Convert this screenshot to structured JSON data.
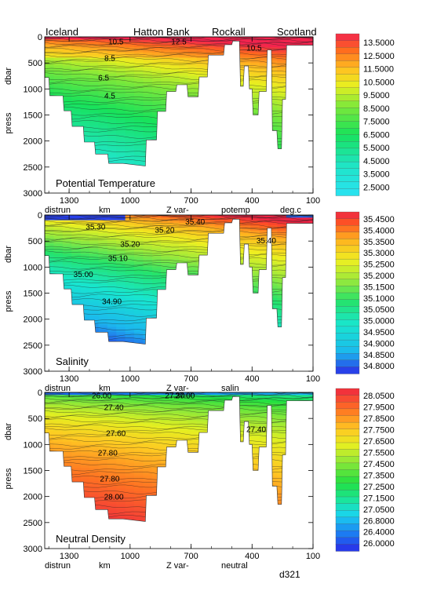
{
  "figure_label": "d321",
  "location_labels": [
    "Iceland",
    "Hatton Bank",
    "Rockall",
    "Scotland"
  ],
  "chart_data": [
    {
      "type": "contour_section",
      "title": "Potential Temperature",
      "ylabel_unit": "dbar",
      "ylabel": "press",
      "xlabel_items": [
        "distrun",
        "km",
        "Z var-",
        "potemp",
        "deg.c"
      ],
      "x_ticks": [
        "1300",
        "1000",
        "700",
        "400",
        "100"
      ],
      "xlim": [
        1420,
        100
      ],
      "y_ticks": [
        "0",
        "500",
        "1000",
        "1500",
        "2000",
        "2500",
        "3000"
      ],
      "ylim": [
        0,
        3000
      ],
      "colorbar_labels": [
        "13.5000",
        "12.5000",
        "11.5000",
        "10.5000",
        "9.5000",
        "8.5000",
        "7.5000",
        "6.5000",
        "5.5000",
        "4.5000",
        "3.5000",
        "2.5000"
      ],
      "contour_labels": [
        {
          "text": "10.5",
          "x": 1070,
          "y": 80
        },
        {
          "text": "12.5",
          "x": 760,
          "y": 80
        },
        {
          "text": "10.5",
          "x": 390,
          "y": 200
        },
        {
          "text": "8.5",
          "x": 1100,
          "y": 400
        },
        {
          "text": "6.5",
          "x": 1130,
          "y": 780
        },
        {
          "text": "4.5",
          "x": 1100,
          "y": 1120
        }
      ]
    },
    {
      "type": "contour_section",
      "title": "Salinity",
      "ylabel_unit": "dbar",
      "ylabel": "press",
      "xlabel_items": [
        "distrun",
        "km",
        "Z var-",
        "salin"
      ],
      "x_ticks": [
        "1300",
        "1000",
        "700",
        "400",
        "100"
      ],
      "xlim": [
        1420,
        100
      ],
      "y_ticks": [
        "0",
        "500",
        "1000",
        "1500",
        "2000",
        "2500",
        "3000"
      ],
      "ylim": [
        0,
        3000
      ],
      "colorbar_labels": [
        "35.4500",
        "35.4000",
        "35.3500",
        "35.3000",
        "35.2500",
        "35.2000",
        "35.1500",
        "35.1000",
        "35.0500",
        "35.0000",
        "34.9500",
        "34.9000",
        "34.8500",
        "34.8000"
      ],
      "contour_labels": [
        {
          "text": "35.40",
          "x": 680,
          "y": 120
        },
        {
          "text": "35.30",
          "x": 1170,
          "y": 220
        },
        {
          "text": "35.20",
          "x": 830,
          "y": 280
        },
        {
          "text": "35.20",
          "x": 1000,
          "y": 550
        },
        {
          "text": "35.10",
          "x": 1060,
          "y": 820
        },
        {
          "text": "35.00",
          "x": 1230,
          "y": 1130
        },
        {
          "text": "35.40",
          "x": 330,
          "y": 480
        },
        {
          "text": "34.90",
          "x": 1090,
          "y": 1650
        }
      ]
    },
    {
      "type": "contour_section",
      "title": "Neutral Density",
      "ylabel_unit": "dbar",
      "ylabel": "press",
      "xlabel_items": [
        "distrun",
        "km",
        "Z var-",
        "neutral"
      ],
      "x_ticks": [
        "1300",
        "1000",
        "700",
        "400",
        "100"
      ],
      "xlim": [
        1420,
        100
      ],
      "y_ticks": [
        "0",
        "500",
        "1000",
        "1500",
        "2000",
        "2500",
        "3000"
      ],
      "ylim": [
        0,
        3000
      ],
      "colorbar_labels": [
        "28.0500",
        "27.9500",
        "27.8500",
        "27.7500",
        "27.6500",
        "27.5500",
        "27.4500",
        "27.3500",
        "27.2500",
        "27.1500",
        "27.0500",
        "26.8000",
        "26.4000",
        "26.0000"
      ],
      "contour_labels": [
        {
          "text": "26.00",
          "x": 1140,
          "y": 50
        },
        {
          "text": "27.30",
          "x": 780,
          "y": 50
        },
        {
          "text": "27.00",
          "x": 730,
          "y": 50
        },
        {
          "text": "27.40",
          "x": 1080,
          "y": 280
        },
        {
          "text": "27.40",
          "x": 380,
          "y": 700
        },
        {
          "text": "27.60",
          "x": 1070,
          "y": 780
        },
        {
          "text": "27.80",
          "x": 1110,
          "y": 1150
        },
        {
          "text": "27.80",
          "x": 1100,
          "y": 1650
        },
        {
          "text": "28.00",
          "x": 1080,
          "y": 2000
        }
      ]
    }
  ]
}
